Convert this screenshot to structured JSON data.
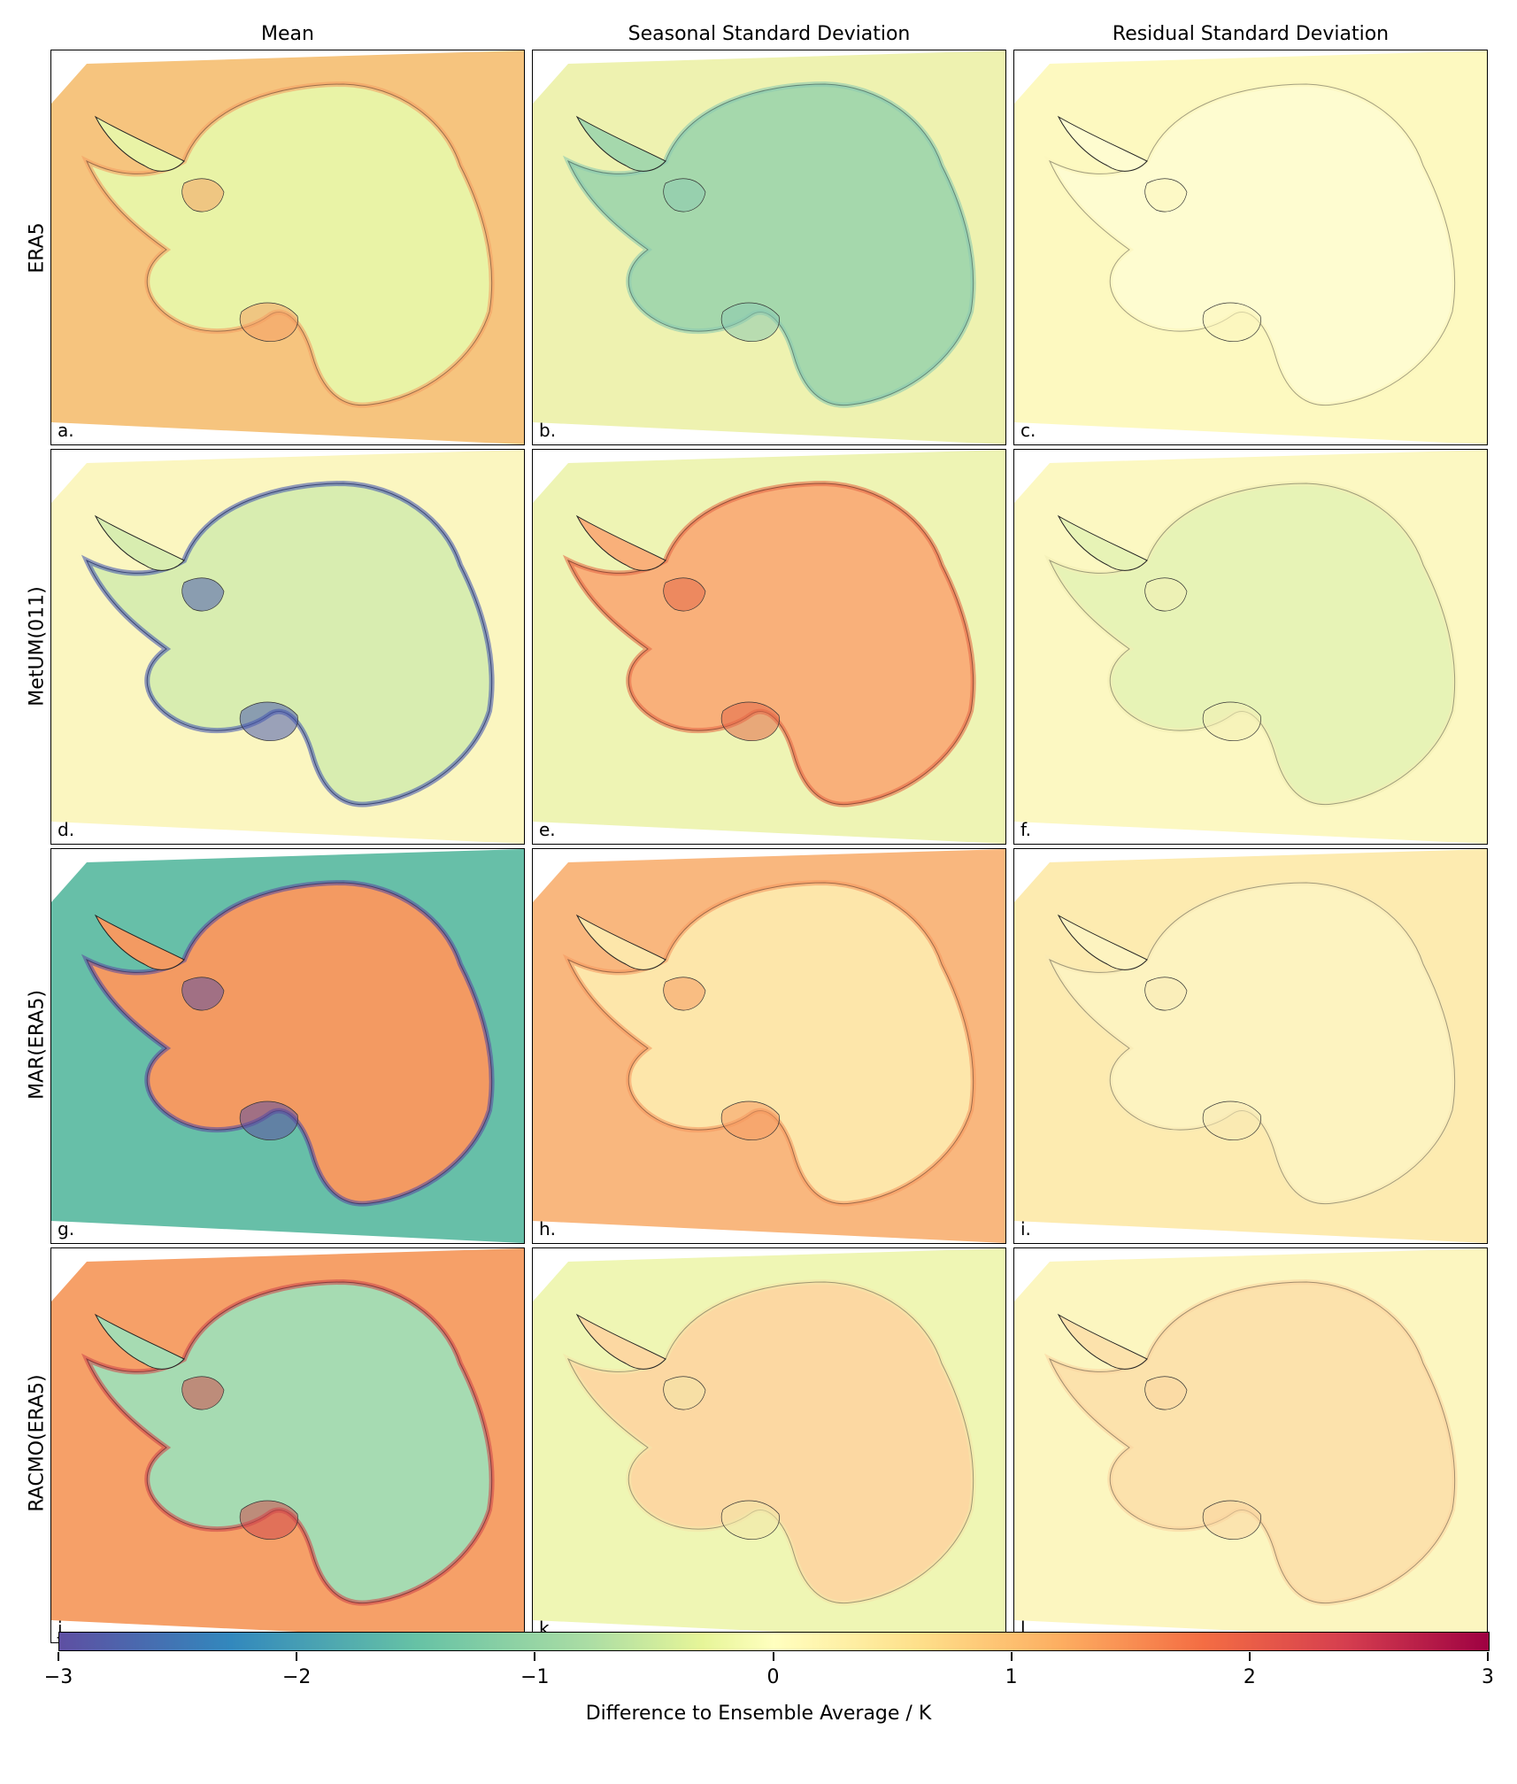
{
  "columns": [
    {
      "title": "Mean"
    },
    {
      "title": "Seasonal Standard Deviation"
    },
    {
      "title": "Residual Standard Deviation"
    }
  ],
  "rows": [
    {
      "label": "ERA5",
      "letters": [
        "a.",
        "b.",
        "c."
      ],
      "fills": [
        {
          "bg": "#f6c47e",
          "land": "#e9f3a6",
          "accent": "#f4a064"
        },
        {
          "bg": "#eef2b0",
          "land": "#a5d8ac",
          "accent": "#8ccab0"
        },
        {
          "bg": "#fdf9c0",
          "land": "#fefcd0",
          "accent": "#fbf5bd"
        }
      ]
    },
    {
      "label": "MetUM(011)",
      "letters": [
        "d.",
        "e.",
        "f."
      ],
      "fills": [
        {
          "bg": "#fbf6c0",
          "land": "#d8edb0",
          "accent": "#4a5bb0"
        },
        {
          "bg": "#eef4b4",
          "land": "#f9b07a",
          "accent": "#e46a48"
        },
        {
          "bg": "#fcf8c2",
          "land": "#e7f3b6",
          "accent": "#f2efb4"
        }
      ]
    },
    {
      "label": "MAR(ERA5)",
      "letters": [
        "g.",
        "h.",
        "i."
      ],
      "fills": [
        {
          "bg": "#67bfa8",
          "land": "#f39a62",
          "accent": "#5c4fa0"
        },
        {
          "bg": "#f9b77e",
          "land": "#fde6aa",
          "accent": "#f59a60"
        },
        {
          "bg": "#fdebb0",
          "land": "#fdf3c0",
          "accent": "#f8eab4"
        }
      ]
    },
    {
      "label": "RACMO(ERA5)",
      "letters": [
        "j.",
        "k.",
        "l."
      ],
      "fills": [
        {
          "bg": "#f6a068",
          "land": "#a6dbb2",
          "accent": "#d04a4c"
        },
        {
          "bg": "#eff6b4",
          "land": "#fcd8a2",
          "accent": "#f3e6a8"
        },
        {
          "bg": "#fcf6c0",
          "land": "#fce2ac",
          "accent": "#fad6a0"
        }
      ]
    }
  ],
  "colorbar": {
    "min": -3,
    "max": 3,
    "ticks": [
      "−3",
      "−2",
      "−1",
      "0",
      "1",
      "2",
      "3"
    ],
    "label": "Difference to Ensemble Average / K",
    "cmap": "Spectral_r"
  }
}
